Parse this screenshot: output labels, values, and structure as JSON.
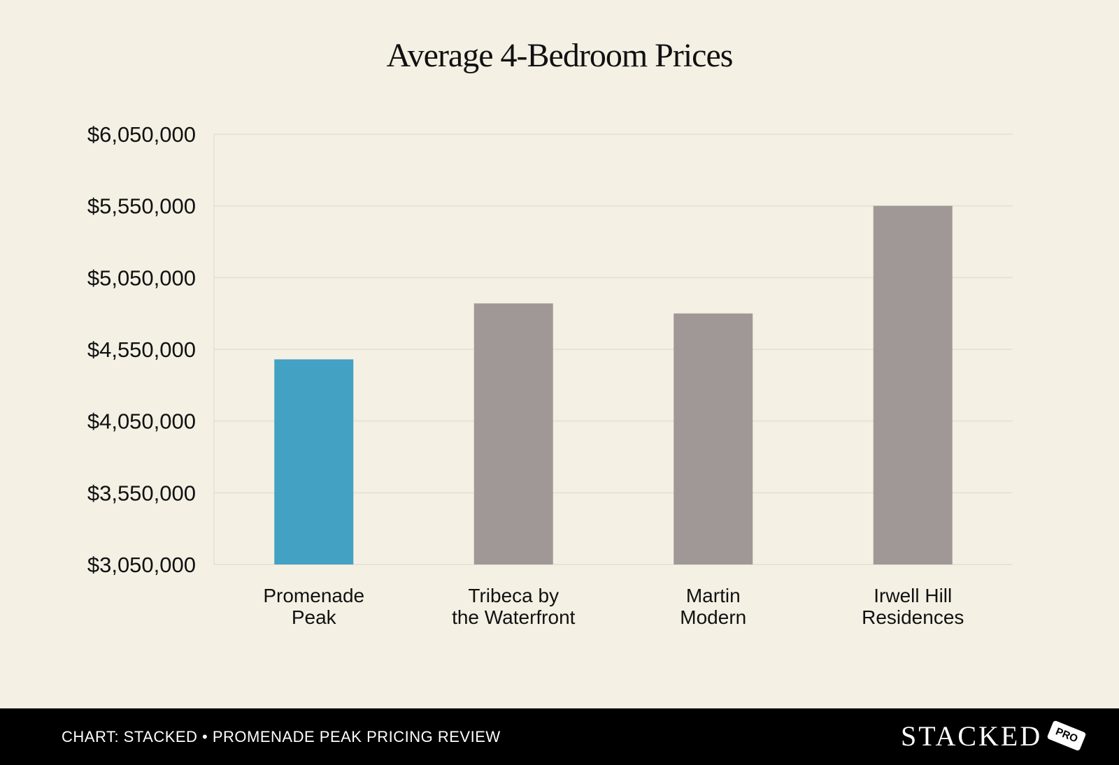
{
  "chart_data": {
    "type": "bar",
    "title": "Average 4-Bedroom Prices",
    "categories": [
      [
        "Promenade",
        "Peak"
      ],
      [
        "Tribeca by",
        "the Waterfront"
      ],
      [
        "Martin",
        "Modern"
      ],
      [
        "Irwell Hill",
        "Residences"
      ]
    ],
    "values": [
      4480000,
      4870000,
      4800000,
      5550000
    ],
    "ylim": [
      3050000,
      6050000
    ],
    "yticks": [
      3050000,
      3550000,
      4050000,
      4550000,
      5050000,
      5550000,
      6050000
    ],
    "ytick_labels": [
      "$3,050,000",
      "$3,550,000",
      "$4,050,000",
      "$4,550,000",
      "$5,050,000",
      "$5,550,000",
      "$6,050,000"
    ],
    "colors": [
      "#43a1c4",
      "#a09896",
      "#a09896",
      "#a09896"
    ],
    "grid": true,
    "xlabel": "",
    "ylabel": ""
  },
  "footer": {
    "source": "CHART: STACKED • PROMENADE PEAK PRICING REVIEW",
    "brand": "STACKED",
    "badge": "PRO"
  }
}
